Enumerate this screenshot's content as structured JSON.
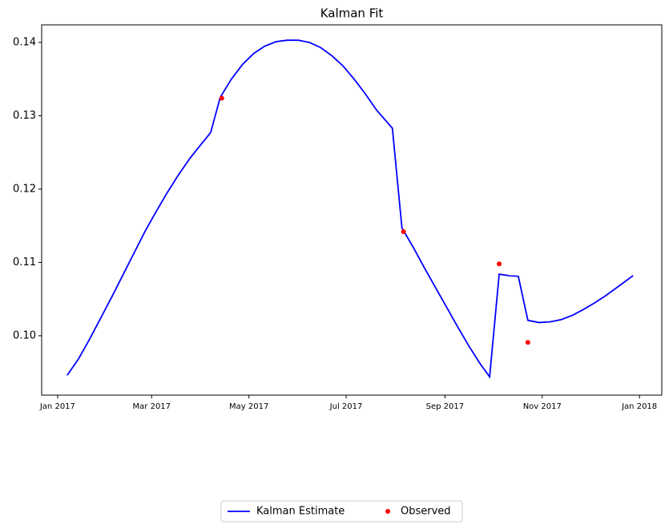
{
  "chart_data": {
    "type": "line",
    "title": "Kalman Fit",
    "xlim": [
      "2016-12-22",
      "2018-01-15"
    ],
    "xticks": [
      {
        "value": "2017-01-01",
        "label": "Jan 2017"
      },
      {
        "value": "2017-03-01",
        "label": "Mar 2017"
      },
      {
        "value": "2017-05-01",
        "label": "May 2017"
      },
      {
        "value": "2017-07-01",
        "label": "Jul 2017"
      },
      {
        "value": "2017-09-01",
        "label": "Sep 2017"
      },
      {
        "value": "2017-11-01",
        "label": "Nov 2017"
      },
      {
        "value": "2018-01-01",
        "label": "Jan 2018"
      }
    ],
    "ylim": [
      0.0919,
      0.1424
    ],
    "yticks": [
      {
        "value": 0.1,
        "label": "0.10"
      },
      0.11,
      0.12,
      0.13,
      0.14
    ],
    "grid": false,
    "legend": "bottom",
    "series": [
      {
        "name": "Kalman Estimate",
        "type": "line",
        "color": "#0000ff",
        "x": [
          "2017-01-07",
          "2017-01-14",
          "2017-01-21",
          "2017-01-28",
          "2017-02-04",
          "2017-02-11",
          "2017-02-18",
          "2017-02-25",
          "2017-03-04",
          "2017-03-11",
          "2017-03-18",
          "2017-03-25",
          "2017-04-01",
          "2017-04-07",
          "2017-04-13",
          "2017-04-20",
          "2017-04-27",
          "2017-05-04",
          "2017-05-11",
          "2017-05-18",
          "2017-05-25",
          "2017-06-01",
          "2017-06-08",
          "2017-06-15",
          "2017-06-22",
          "2017-06-29",
          "2017-07-06",
          "2017-07-13",
          "2017-07-20",
          "2017-07-30",
          "2017-08-05",
          "2017-08-12",
          "2017-08-19",
          "2017-08-26",
          "2017-09-02",
          "2017-09-09",
          "2017-09-16",
          "2017-09-23",
          "2017-09-29",
          "2017-10-05",
          "2017-10-11",
          "2017-10-17",
          "2017-10-23",
          "2017-10-30",
          "2017-11-06",
          "2017-11-13",
          "2017-11-20",
          "2017-11-27",
          "2017-12-04",
          "2017-12-11",
          "2017-12-18",
          "2017-12-28"
        ],
        "values": [
          0.0946,
          0.0968,
          0.0995,
          0.1024,
          0.1053,
          0.1083,
          0.1113,
          0.1143,
          0.117,
          0.1196,
          0.122,
          0.1242,
          0.1261,
          0.1277,
          0.1325,
          0.135,
          0.137,
          0.1385,
          0.1395,
          0.1401,
          0.1403,
          0.1403,
          0.14,
          0.1393,
          0.1382,
          0.1368,
          0.135,
          0.133,
          0.1308,
          0.1283,
          0.1147,
          0.1121,
          0.1093,
          0.1066,
          0.1039,
          0.1012,
          0.0986,
          0.0962,
          0.0944,
          0.1084,
          0.1082,
          0.1081,
          0.1021,
          0.1018,
          0.1019,
          0.1022,
          0.1028,
          0.1036,
          0.1045,
          0.1055,
          0.1066,
          0.1082
        ]
      },
      {
        "name": "Observed",
        "type": "scatter",
        "color": "#ff0000",
        "x": [
          "2017-04-14",
          "2017-08-06",
          "2017-10-05",
          "2017-10-23"
        ],
        "values": [
          0.1324,
          0.1142,
          0.1098,
          0.0991
        ]
      }
    ]
  }
}
